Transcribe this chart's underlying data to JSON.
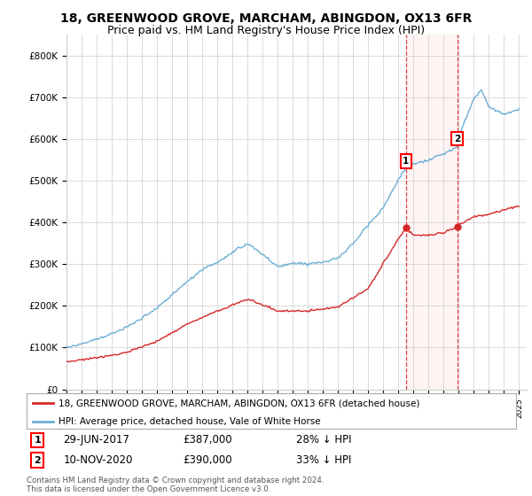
{
  "title": "18, GREENWOOD GROVE, MARCHAM, ABINGDON, OX13 6FR",
  "subtitle": "Price paid vs. HM Land Registry's House Price Index (HPI)",
  "ylim": [
    0,
    850000
  ],
  "yticks": [
    0,
    100000,
    200000,
    300000,
    400000,
    500000,
    600000,
    700000,
    800000
  ],
  "ytick_labels": [
    "£0",
    "£100K",
    "£200K",
    "£300K",
    "£400K",
    "£500K",
    "£600K",
    "£700K",
    "£800K"
  ],
  "hpi_color": "#6baed6",
  "price_color": "#d62728",
  "sale1_year": 2017.5,
  "sale2_year": 2020.9,
  "sale1_price_val": 387000,
  "sale2_price_val": 390000,
  "sale1_date": "29-JUN-2017",
  "sale1_price": "£387,000",
  "sale1_pct": "28% ↓ HPI",
  "sale2_date": "10-NOV-2020",
  "sale2_price": "£390,000",
  "sale2_pct": "33% ↓ HPI",
  "legend_label_price": "18, GREENWOOD GROVE, MARCHAM, ABINGDON, OX13 6FR (detached house)",
  "legend_label_hpi": "HPI: Average price, detached house, Vale of White Horse",
  "footnote": "Contains HM Land Registry data © Crown copyright and database right 2024.\nThis data is licensed under the Open Government Licence v3.0.",
  "title_fontsize": 10,
  "subtitle_fontsize": 9,
  "background_color": "#ffffff",
  "xlim_start": 1995,
  "xlim_end": 2025.5
}
